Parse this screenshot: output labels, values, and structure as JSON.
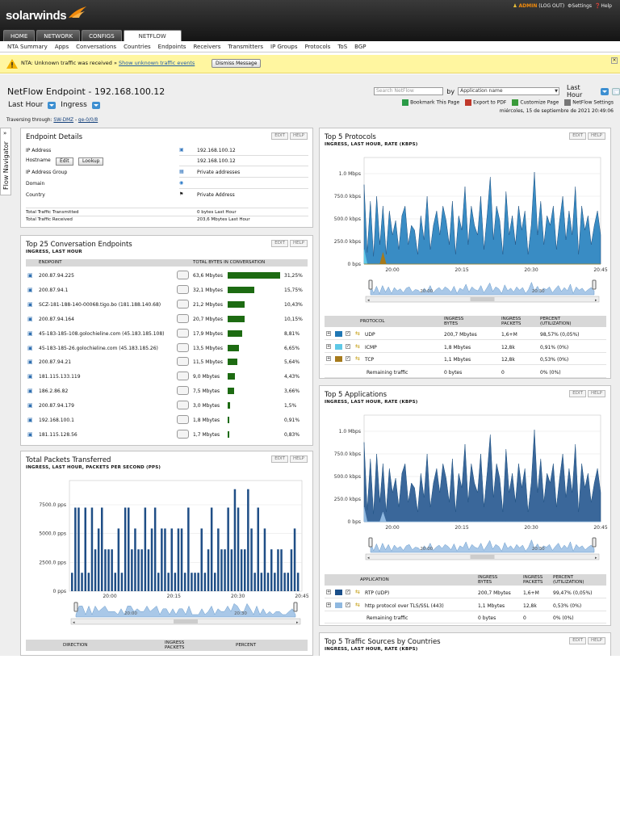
{
  "header": {
    "logo": "solarwinds",
    "admin": "ADMIN",
    "logout": "(LOG OUT)",
    "settings": "Settings",
    "help": "Help",
    "tabs": [
      "HOME",
      "NETWORK",
      "CONFIGS",
      "NETFLOW"
    ]
  },
  "subnav": [
    "NTA Summary",
    "Apps",
    "Conversations",
    "Countries",
    "Endpoints",
    "Receivers",
    "Transmitters",
    "IP Groups",
    "Protocols",
    "ToS",
    "BGP"
  ],
  "notice": {
    "text": "NTA: Unknown traffic was received »",
    "link": "Show unknown traffic events",
    "button": "Dismiss Message"
  },
  "page": {
    "title": "NetFlow Endpoint - 192.168.100.12",
    "period": "Last Hour",
    "direction": "Ingress",
    "traversing_label": "Traversing through:",
    "traversing_node": "SW-DMZ",
    "traversing_iface": "ge-0/0/8",
    "search_placeholder": "Search NetFlow",
    "by_label": "by",
    "search_by": "Application name",
    "last_hour": "Last Hour",
    "bookmark": "Bookmark This Page",
    "export": "Export to PDF",
    "customize": "Customize Page",
    "netflow_settings": "NetFlow Settings",
    "date": "miércoles, 15 de septiembre de 2021 20:49:06",
    "flow_nav": "Flow Navigator"
  },
  "buttons": {
    "edit": "EDIT",
    "help": "HELP"
  },
  "endpoint": {
    "title": "Endpoint Details",
    "ip_label": "IP Address",
    "ip": "192.168.100.12",
    "host_label": "Hostname",
    "host": "192.168.100.12",
    "edit_btn": "Edit",
    "lookup_btn": "Lookup",
    "group_label": "IP Address Group",
    "group": "Private addresses",
    "domain_label": "Domain",
    "country_label": "Country",
    "country": "Private Address",
    "tx_label": "Total Traffic Transmitted",
    "tx": "0 bytes   Last Hour",
    "rx_label": "Total Traffic Received",
    "rx": "203,6 Mbytes   Last Hour"
  },
  "conv": {
    "title": "Top 25 Conversation Endpoints",
    "sub": "INGRESS, LAST HOUR",
    "col1": "ENDPOINT",
    "col2": "TOTAL BYTES IN CONVERSATION",
    "rows": [
      {
        "ep": "200.87.94.225",
        "bytes": "63,6 Mbytes",
        "pct": "31,25%",
        "frac": 1.0
      },
      {
        "ep": "200.87.94.1",
        "bytes": "32,1 Mbytes",
        "pct": "15,75%",
        "frac": 0.5
      },
      {
        "ep": "SCZ-181-188-140-00068.tigo.bo (181.188.140.68)",
        "bytes": "21,2 Mbytes",
        "pct": "10,43%",
        "frac": 0.33
      },
      {
        "ep": "200.87.94.164",
        "bytes": "20,7 Mbytes",
        "pct": "10,15%",
        "frac": 0.32
      },
      {
        "ep": "45-183-185-108.golochieline.com (45.183.185.108)",
        "bytes": "17,9 Mbytes",
        "pct": "8,81%",
        "frac": 0.28
      },
      {
        "ep": "45-183-185-26.golochieline.com (45.183.185.26)",
        "bytes": "13,5 Mbytes",
        "pct": "6,65%",
        "frac": 0.21
      },
      {
        "ep": "200.87.94.21",
        "bytes": "11,5 Mbytes",
        "pct": "5,64%",
        "frac": 0.18
      },
      {
        "ep": "181.115.133.119",
        "bytes": "9,0 Mbytes",
        "pct": "4,43%",
        "frac": 0.14
      },
      {
        "ep": "186.2.86.82",
        "bytes": "7,5 Mbytes",
        "pct": "3,66%",
        "frac": 0.12
      },
      {
        "ep": "200.87.94.179",
        "bytes": "3,0 Mbytes",
        "pct": "1,5%",
        "frac": 0.05
      },
      {
        "ep": "192.168.100.1",
        "bytes": "1,8 Mbytes",
        "pct": "0,91%",
        "frac": 0.03
      },
      {
        "ep": "181.115.128.56",
        "bytes": "1,7 Mbytes",
        "pct": "0,83%",
        "frac": 0.03
      }
    ]
  },
  "packets": {
    "title": "Total Packets Transferred",
    "sub": "INGRESS, LAST HOUR, PACKETS PER SECOND (PPS)",
    "col_direction": "DIRECTION",
    "col_packets": "INGRESS PACKETS",
    "col_percent": "PERCENT"
  },
  "protocols": {
    "title": "Top 5 Protocols",
    "sub": "INGRESS, LAST HOUR, RATE (KBPS)",
    "h_proto": "PROTOCOL",
    "h_bytes": "INGRESS BYTES",
    "h_packets": "INGRESS PACKETS",
    "h_pct": "PERCENT (UTILIZATION)",
    "rows": [
      {
        "name": "UDP",
        "bytes": "200,7 Mbytes",
        "packets": "1,6+M",
        "pct": "98,57% (0,05%)",
        "color": "#1f77b4"
      },
      {
        "name": "ICMP",
        "bytes": "1,8 Mbytes",
        "packets": "12,8k",
        "pct": "0,91% (0%)",
        "color": "#5ec8e6"
      },
      {
        "name": "TCP",
        "bytes": "1,1 Mbytes",
        "packets": "12,8k",
        "pct": "0,53% (0%)",
        "color": "#a67a1b"
      }
    ],
    "remaining": {
      "name": "Remaining traffic",
      "bytes": "0 bytes",
      "packets": "0",
      "pct": "0% (0%)"
    }
  },
  "applications": {
    "title": "Top 5 Applications",
    "sub": "INGRESS, LAST HOUR, RATE (KBPS)",
    "h_app": "APPLICATION",
    "h_bytes": "INGRESS BYTES",
    "h_packets": "INGRESS PACKETS",
    "h_pct": "PERCENT (UTILIZATION)",
    "rows": [
      {
        "name": "RTP (UDP)",
        "bytes": "200,7 Mbytes",
        "packets": "1,6+M",
        "pct": "99,47% (0,05%)",
        "color": "#1b4f8a"
      },
      {
        "name": "http protocol over TLS/SSL (443)",
        "bytes": "1,1 Mbytes",
        "packets": "12,8k",
        "pct": "0,53% (0%)",
        "color": "#8fb8e0"
      }
    ],
    "remaining": {
      "name": "Remaining traffic",
      "bytes": "0 bytes",
      "packets": "0",
      "pct": "0% (0%)"
    }
  },
  "countries": {
    "title": "Top 5 Traffic Sources by Countries",
    "sub": "INGRESS, LAST HOUR, RATE (KBPS)"
  },
  "chart_data": [
    {
      "type": "area",
      "name": "protocols",
      "ylabels": [
        "1.0 Mbps",
        "750.0 kbps",
        "500.0 kbps",
        "250.0 kbps",
        "0 bps"
      ],
      "xlabels": [
        "20:00",
        "20:15",
        "20:30",
        "20:45"
      ],
      "ylim": [
        0,
        1100
      ],
      "nav_xlabels": [
        "20:00",
        "20:30"
      ],
      "series": [
        {
          "color": "#2e86c1",
          "values": [
            820,
            120,
            650,
            80,
            700,
            200,
            600,
            100,
            550,
            300,
            450,
            150,
            500,
            600,
            200,
            400,
            350,
            100,
            500,
            250,
            700,
            150,
            400,
            550,
            300,
            600,
            450,
            200,
            650,
            100,
            500,
            350,
            800,
            200,
            600,
            400,
            300,
            700,
            150,
            500,
            900,
            250,
            600,
            450,
            100,
            750,
            300,
            500,
            200,
            600,
            350,
            550,
            100,
            400,
            950,
            300,
            650,
            200,
            500,
            400,
            600,
            150,
            450,
            700,
            250,
            550,
            300,
            800,
            100,
            600,
            350,
            500,
            200,
            400,
            550,
            300
          ]
        },
        {
          "color": "#5ec8e6",
          "values": [
            150,
            0,
            0,
            0,
            0,
            0,
            0,
            0,
            0,
            0,
            0,
            0,
            0,
            0,
            0,
            0,
            0,
            0,
            0,
            0,
            0,
            0,
            0,
            0,
            0,
            0,
            0,
            0,
            0,
            0,
            0,
            0,
            0,
            0,
            0,
            0,
            0,
            0,
            0,
            0,
            0,
            0,
            0,
            0,
            0,
            0,
            0,
            0,
            0,
            0,
            0,
            0,
            0,
            0,
            0,
            0,
            0,
            0,
            0,
            0,
            0,
            0,
            0,
            0,
            0,
            0,
            0,
            0,
            0,
            0,
            0,
            0,
            0,
            0,
            0,
            0
          ]
        },
        {
          "color": "#a67a1b",
          "values": [
            0,
            0,
            0,
            0,
            0,
            0,
            120,
            0,
            0,
            0,
            0,
            0,
            0,
            0,
            0,
            0,
            0,
            0,
            0,
            0,
            0,
            0,
            0,
            0,
            0,
            0,
            0,
            0,
            0,
            0,
            0,
            0,
            0,
            0,
            0,
            0,
            0,
            0,
            0,
            0,
            0,
            0,
            0,
            0,
            0,
            0,
            0,
            0,
            0,
            0,
            0,
            0,
            0,
            0,
            0,
            0,
            0,
            0,
            0,
            0,
            0,
            0,
            0,
            0,
            0,
            0,
            0,
            0,
            0,
            0,
            0,
            0,
            0,
            0,
            0,
            0
          ]
        }
      ]
    },
    {
      "type": "area",
      "name": "applications",
      "ylabels": [
        "1.0 Mbps",
        "750.0 kbps",
        "500.0 kbps",
        "250.0 kbps",
        "0 bps"
      ],
      "xlabels": [
        "20:00",
        "20:15",
        "20:30",
        "20:45"
      ],
      "ylim": [
        0,
        1100
      ],
      "nav_xlabels": [
        "20:00",
        "20:30"
      ],
      "series": [
        {
          "color": "#2f5f95",
          "values": [
            820,
            120,
            650,
            80,
            700,
            200,
            600,
            100,
            550,
            300,
            450,
            150,
            500,
            600,
            200,
            400,
            350,
            100,
            500,
            250,
            700,
            150,
            400,
            550,
            300,
            600,
            450,
            200,
            650,
            100,
            500,
            350,
            800,
            200,
            600,
            400,
            300,
            700,
            150,
            500,
            900,
            250,
            600,
            450,
            100,
            750,
            300,
            500,
            200,
            600,
            350,
            550,
            100,
            400,
            950,
            300,
            650,
            200,
            500,
            400,
            600,
            150,
            450,
            700,
            250,
            550,
            300,
            800,
            100,
            600,
            350,
            500,
            200,
            400,
            550,
            300
          ]
        },
        {
          "color": "#8fb8e0",
          "values": [
            150,
            0,
            0,
            0,
            0,
            0,
            100,
            0,
            0,
            0,
            0,
            0,
            0,
            0,
            0,
            0,
            0,
            0,
            0,
            0,
            0,
            0,
            0,
            0,
            0,
            0,
            0,
            0,
            0,
            0,
            0,
            0,
            0,
            0,
            0,
            0,
            0,
            0,
            0,
            0,
            0,
            0,
            0,
            0,
            0,
            0,
            0,
            0,
            0,
            0,
            0,
            0,
            0,
            0,
            0,
            0,
            0,
            0,
            0,
            0,
            0,
            0,
            0,
            0,
            0,
            0,
            0,
            0,
            0,
            0,
            0,
            0,
            0,
            0,
            0,
            0
          ]
        }
      ]
    },
    {
      "type": "bar",
      "name": "packets",
      "ylabels": [
        "7500.0 pps",
        "5000.0 pps",
        "2500.0 pps",
        "0 pps"
      ],
      "xlabels": [
        "20:00",
        "20:15",
        "20:30",
        "20:45"
      ],
      "ylim": [
        0,
        9000
      ],
      "nav_xlabels": [
        "20:00",
        "20:30"
      ],
      "color": "#1f4e86",
      "values": [
        1500,
        6800,
        6800,
        1500,
        6800,
        1500,
        6800,
        3400,
        5100,
        6800,
        3400,
        3400,
        3400,
        1500,
        5100,
        1500,
        6800,
        6800,
        3400,
        5100,
        3400,
        3400,
        6800,
        3400,
        5100,
        6800,
        1500,
        5100,
        5100,
        1500,
        5100,
        1500,
        5100,
        5100,
        1500,
        6800,
        1500,
        1500,
        1500,
        5100,
        1500,
        3400,
        6800,
        1500,
        5100,
        3400,
        3400,
        6800,
        3400,
        8300,
        6800,
        3400,
        3400,
        8300,
        5100,
        1500,
        6800,
        1500,
        5100,
        1500,
        3400,
        1500,
        3400,
        3400,
        1500,
        1500,
        3400,
        5100,
        1500
      ]
    }
  ]
}
